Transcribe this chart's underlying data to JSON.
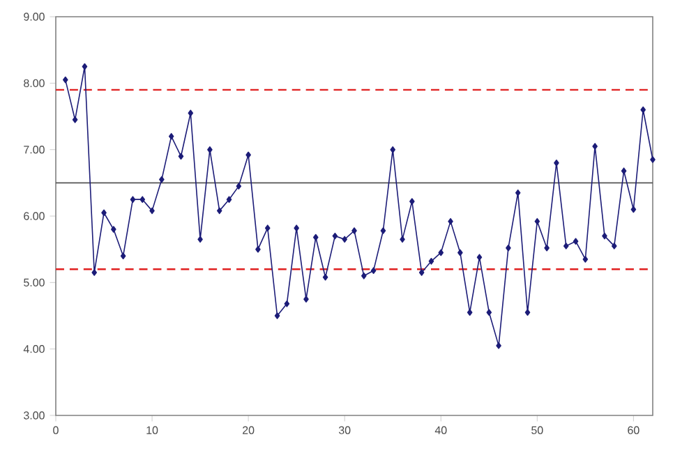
{
  "chart_data": {
    "type": "line",
    "x": [
      1,
      2,
      3,
      4,
      5,
      6,
      7,
      8,
      9,
      10,
      11,
      12,
      13,
      14,
      15,
      16,
      17,
      18,
      19,
      20,
      21,
      22,
      23,
      24,
      25,
      26,
      27,
      28,
      29,
      30,
      31,
      32,
      33,
      34,
      35,
      36,
      37,
      38,
      39,
      40,
      41,
      42,
      43,
      44,
      45,
      46,
      47,
      48,
      49,
      50,
      51,
      52,
      53,
      54,
      55,
      56,
      57,
      58,
      59,
      60,
      61,
      62
    ],
    "series": [
      {
        "color": "#1c1c78",
        "values": [
          8.05,
          7.45,
          8.25,
          5.15,
          6.05,
          5.8,
          5.4,
          6.25,
          6.25,
          6.08,
          6.55,
          7.2,
          6.9,
          7.55,
          5.65,
          7.0,
          6.08,
          6.25,
          6.45,
          6.92,
          5.5,
          5.82,
          4.5,
          4.68,
          5.82,
          4.75,
          5.68,
          5.08,
          5.7,
          5.65,
          5.78,
          5.1,
          5.18,
          5.78,
          7.0,
          5.65,
          6.22,
          5.15,
          5.32,
          5.45,
          5.92,
          5.45,
          4.55,
          5.38,
          4.55,
          4.05,
          5.52,
          6.35,
          4.55,
          5.92,
          5.52,
          6.8,
          5.55,
          5.62,
          5.35,
          7.05,
          5.7,
          5.55,
          6.68,
          6.1,
          7.6,
          6.85
        ]
      }
    ],
    "xlim": [
      0,
      62
    ],
    "ylim": [
      3,
      9
    ],
    "xticks": [
      0,
      10,
      20,
      30,
      40,
      50,
      60
    ],
    "yticks": [
      {
        "value": 3,
        "label": "3.00"
      },
      {
        "value": 4,
        "label": "4.00"
      },
      {
        "value": 5,
        "label": "5.00"
      },
      {
        "value": 6,
        "label": "6.00"
      },
      {
        "value": 7,
        "label": "7.00"
      },
      {
        "value": 8,
        "label": "8.00"
      },
      {
        "value": 9,
        "label": "9.00"
      }
    ],
    "ref_lines": [
      {
        "axis": "y",
        "value": 7.9,
        "color": "#e02020",
        "line_style": "dashed"
      },
      {
        "axis": "y",
        "value": 6.5,
        "color": "#555555",
        "line_style": "solid"
      },
      {
        "axis": "y",
        "value": 5.2,
        "color": "#e02020",
        "line_style": "dashed"
      }
    ],
    "marker": "diamond",
    "line_style": "solid",
    "grid": false
  }
}
